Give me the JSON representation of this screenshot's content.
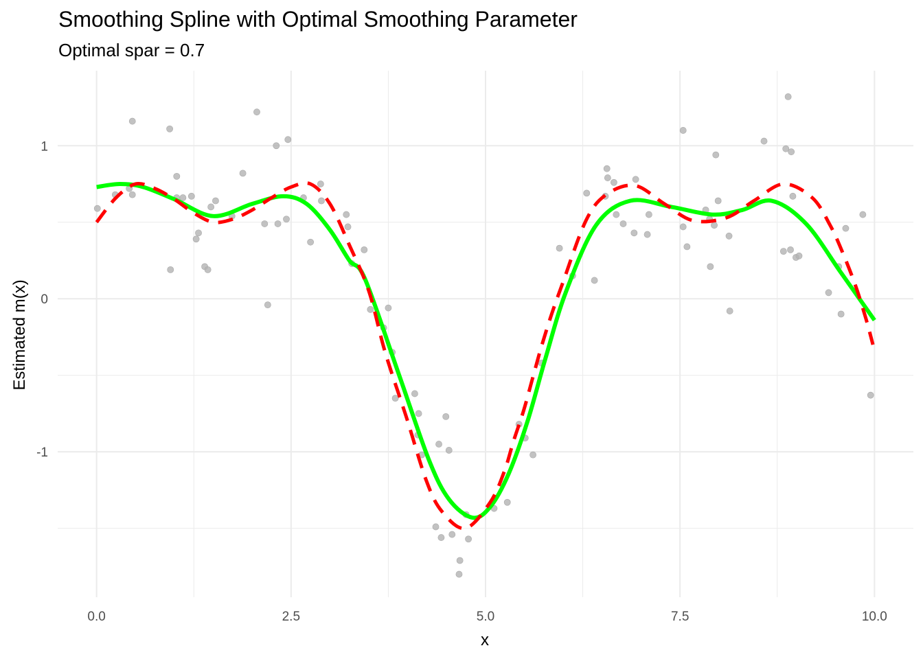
{
  "chart_data": {
    "type": "scatter",
    "title": "Smoothing Spline with Optimal Smoothing Parameter",
    "subtitle": "Optimal spar = 0.7",
    "xlabel": "x",
    "ylabel": "Estimated m(x)",
    "xlim": [
      -0.5,
      10.5
    ],
    "ylim": [
      -1.95,
      1.49
    ],
    "x_ticks": [
      0,
      2.5,
      5,
      7.5,
      10
    ],
    "x_tick_labels": [
      "0.0",
      "2.5",
      "5.0",
      "7.5",
      "10.0"
    ],
    "y_ticks": [
      -1,
      0,
      1
    ],
    "y_tick_labels": [
      "-1",
      "0",
      "1"
    ],
    "grid": true,
    "legend": "none",
    "colors": {
      "points": "#b3b3b3",
      "fitted": "#00ff00",
      "true": "#ff0000",
      "grid": "#ebebeb"
    },
    "points": [
      [
        0.01,
        0.59
      ],
      [
        0.24,
        0.68
      ],
      [
        0.42,
        0.72
      ],
      [
        0.46,
        1.16
      ],
      [
        0.46,
        0.68
      ],
      [
        0.94,
        1.11
      ],
      [
        0.95,
        0.19
      ],
      [
        1.03,
        0.8
      ],
      [
        1.03,
        0.66
      ],
      [
        1.11,
        0.66
      ],
      [
        1.22,
        0.67
      ],
      [
        1.28,
        0.39
      ],
      [
        1.31,
        0.43
      ],
      [
        1.39,
        0.21
      ],
      [
        1.43,
        0.19
      ],
      [
        1.47,
        0.6
      ],
      [
        1.53,
        0.64
      ],
      [
        1.74,
        0.54
      ],
      [
        1.88,
        0.82
      ],
      [
        2.06,
        1.22
      ],
      [
        2.16,
        0.49
      ],
      [
        2.2,
        -0.04
      ],
      [
        2.31,
        1.0
      ],
      [
        2.33,
        0.49
      ],
      [
        2.44,
        0.52
      ],
      [
        2.46,
        1.04
      ],
      [
        2.66,
        0.66
      ],
      [
        2.75,
        0.37
      ],
      [
        2.88,
        0.75
      ],
      [
        2.89,
        0.64
      ],
      [
        3.21,
        0.55
      ],
      [
        3.23,
        0.47
      ],
      [
        3.28,
        0.23
      ],
      [
        3.44,
        0.32
      ],
      [
        3.52,
        -0.07
      ],
      [
        3.69,
        -0.19
      ],
      [
        3.75,
        -0.06
      ],
      [
        3.8,
        -0.35
      ],
      [
        3.84,
        -0.65
      ],
      [
        4.09,
        -0.62
      ],
      [
        4.13,
        -0.89
      ],
      [
        4.14,
        -0.75
      ],
      [
        4.18,
        -1.02
      ],
      [
        4.36,
        -1.49
      ],
      [
        4.4,
        -0.95
      ],
      [
        4.43,
        -1.56
      ],
      [
        4.49,
        -0.77
      ],
      [
        4.53,
        -0.99
      ],
      [
        4.57,
        -1.54
      ],
      [
        4.66,
        -1.8
      ],
      [
        4.67,
        -1.71
      ],
      [
        4.75,
        -1.41
      ],
      [
        4.78,
        -1.57
      ],
      [
        5.11,
        -1.37
      ],
      [
        5.28,
        -1.33
      ],
      [
        5.43,
        -0.82
      ],
      [
        5.51,
        -0.91
      ],
      [
        5.61,
        -1.02
      ],
      [
        5.72,
        -0.42
      ],
      [
        5.95,
        0.33
      ],
      [
        6.12,
        0.15
      ],
      [
        6.3,
        0.69
      ],
      [
        6.4,
        0.12
      ],
      [
        6.54,
        0.67
      ],
      [
        6.56,
        0.85
      ],
      [
        6.57,
        0.79
      ],
      [
        6.65,
        0.76
      ],
      [
        6.68,
        0.55
      ],
      [
        6.77,
        0.49
      ],
      [
        6.91,
        0.43
      ],
      [
        6.93,
        0.78
      ],
      [
        7.08,
        0.42
      ],
      [
        7.1,
        0.55
      ],
      [
        7.54,
        1.1
      ],
      [
        7.54,
        0.47
      ],
      [
        7.59,
        0.34
      ],
      [
        7.83,
        0.58
      ],
      [
        7.88,
        0.52
      ],
      [
        7.89,
        0.21
      ],
      [
        7.94,
        0.48
      ],
      [
        7.96,
        0.94
      ],
      [
        7.99,
        0.64
      ],
      [
        8.13,
        0.41
      ],
      [
        8.14,
        -0.08
      ],
      [
        8.58,
        1.03
      ],
      [
        8.83,
        0.31
      ],
      [
        8.86,
        0.98
      ],
      [
        8.89,
        1.32
      ],
      [
        8.92,
        0.32
      ],
      [
        8.93,
        0.96
      ],
      [
        8.95,
        0.67
      ],
      [
        8.99,
        0.27
      ],
      [
        9.03,
        0.28
      ],
      [
        9.41,
        0.04
      ],
      [
        9.54,
        0.21
      ],
      [
        9.57,
        -0.1
      ],
      [
        9.63,
        0.46
      ],
      [
        9.85,
        0.55
      ],
      [
        9.95,
        -0.63
      ]
    ],
    "series": [
      {
        "style": "solid",
        "color": "#00ff00",
        "x": [
          0,
          0.3,
          0.6,
          1.0,
          1.5,
          2.0,
          2.4,
          2.7,
          3.0,
          3.25,
          3.45,
          3.89,
          4.27,
          4.53,
          4.83,
          5.06,
          5.3,
          5.54,
          5.77,
          6.03,
          6.42,
          6.86,
          7.39,
          7.92,
          8.3,
          8.68,
          9.12,
          9.57,
          10.0
        ],
        "y": [
          0.73,
          0.75,
          0.73,
          0.65,
          0.54,
          0.62,
          0.67,
          0.62,
          0.45,
          0.25,
          0.13,
          -0.5,
          -1.05,
          -1.31,
          -1.43,
          -1.36,
          -1.14,
          -0.8,
          -0.39,
          0.04,
          0.48,
          0.64,
          0.6,
          0.55,
          0.58,
          0.64,
          0.49,
          0.17,
          -0.14
        ]
      },
      {
        "style": "dashed",
        "color": "#ff0000",
        "x": [
          0,
          0.25,
          0.5,
          0.75,
          1.0,
          1.25,
          1.5,
          1.75,
          2.0,
          2.25,
          2.5,
          2.75,
          3.0,
          3.25,
          3.5,
          3.71,
          3.98,
          4.24,
          4.44,
          4.74,
          5.06,
          5.24,
          5.36,
          5.49,
          5.61,
          5.72,
          5.85,
          5.99,
          6.29,
          6.55,
          6.92,
          7.3,
          7.67,
          8.1,
          8.45,
          8.83,
          9.2,
          9.43,
          9.6,
          9.76,
          9.89,
          9.98
        ],
        "y": [
          0.5,
          0.66,
          0.75,
          0.72,
          0.65,
          0.56,
          0.5,
          0.52,
          0.58,
          0.66,
          0.73,
          0.75,
          0.62,
          0.35,
          0.05,
          -0.35,
          -0.77,
          -1.19,
          -1.39,
          -1.5,
          -1.33,
          -1.13,
          -0.93,
          -0.73,
          -0.51,
          -0.31,
          -0.1,
          0.1,
          0.51,
          0.68,
          0.74,
          0.62,
          0.51,
          0.53,
          0.64,
          0.75,
          0.66,
          0.48,
          0.29,
          0.08,
          -0.13,
          -0.3
        ]
      }
    ]
  }
}
